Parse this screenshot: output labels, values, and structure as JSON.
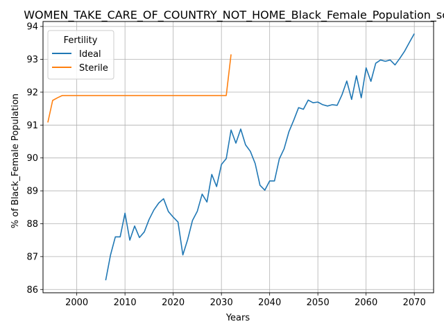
{
  "chart_data": {
    "type": "line",
    "title": "WOMEN_TAKE_CARE_OF_COUNTRY_NOT_HOME_Black_Female_Population_sco",
    "xlabel": "Years",
    "ylabel": "% of Black_Female Population",
    "xlim": [
      1993,
      2074
    ],
    "ylim": [
      85.9,
      94.15
    ],
    "xticks": [
      2000,
      2010,
      2020,
      2030,
      2040,
      2050,
      2060,
      2070
    ],
    "yticks": [
      86,
      87,
      88,
      89,
      90,
      91,
      92,
      93,
      94
    ],
    "grid": true,
    "legend": {
      "title": "Fertility",
      "placement": "top-left"
    },
    "series": [
      {
        "name": "Ideal",
        "color": "#1f77b4",
        "x": [
          2006,
          2007,
          2008,
          2009,
          2010,
          2011,
          2012,
          2013,
          2014,
          2015,
          2016,
          2017,
          2018,
          2019,
          2020,
          2021,
          2022,
          2023,
          2024,
          2025,
          2026,
          2027,
          2028,
          2029,
          2030,
          2031,
          2032,
          2033,
          2034,
          2035,
          2036,
          2037,
          2038,
          2039,
          2040,
          2041,
          2042,
          2043,
          2044,
          2045,
          2046,
          2047,
          2048,
          2049,
          2050,
          2051,
          2052,
          2053,
          2054,
          2055,
          2056,
          2057,
          2058,
          2059,
          2060,
          2061,
          2062,
          2063,
          2064,
          2065,
          2066,
          2067,
          2068,
          2069,
          2070
        ],
        "y": [
          86.28,
          87.05,
          87.6,
          87.6,
          88.32,
          87.5,
          87.93,
          87.58,
          87.75,
          88.13,
          88.42,
          88.63,
          88.76,
          88.37,
          88.2,
          88.05,
          87.05,
          87.52,
          88.1,
          88.38,
          88.9,
          88.66,
          89.5,
          89.13,
          89.8,
          89.98,
          90.85,
          90.45,
          90.88,
          90.4,
          90.2,
          89.83,
          89.17,
          89.02,
          89.3,
          89.3,
          89.97,
          90.28,
          90.8,
          91.15,
          91.53,
          91.48,
          91.76,
          91.68,
          91.7,
          91.62,
          91.58,
          91.62,
          91.6,
          91.92,
          92.34,
          91.78,
          92.5,
          91.83,
          92.74,
          92.33,
          92.88,
          92.98,
          92.94,
          92.98,
          92.83,
          93.03,
          93.25,
          93.52,
          93.78
        ]
      },
      {
        "name": "Sterile",
        "color": "#ff7f0e",
        "x": [
          1994,
          1995,
          1996,
          1997,
          1998,
          1999,
          2000,
          2005,
          2010,
          2015,
          2020,
          2025,
          2030,
          2031,
          2032
        ],
        "y": [
          91.08,
          91.75,
          91.83,
          91.9,
          91.9,
          91.9,
          91.9,
          91.9,
          91.9,
          91.9,
          91.9,
          91.9,
          91.9,
          91.9,
          93.15
        ]
      }
    ]
  }
}
